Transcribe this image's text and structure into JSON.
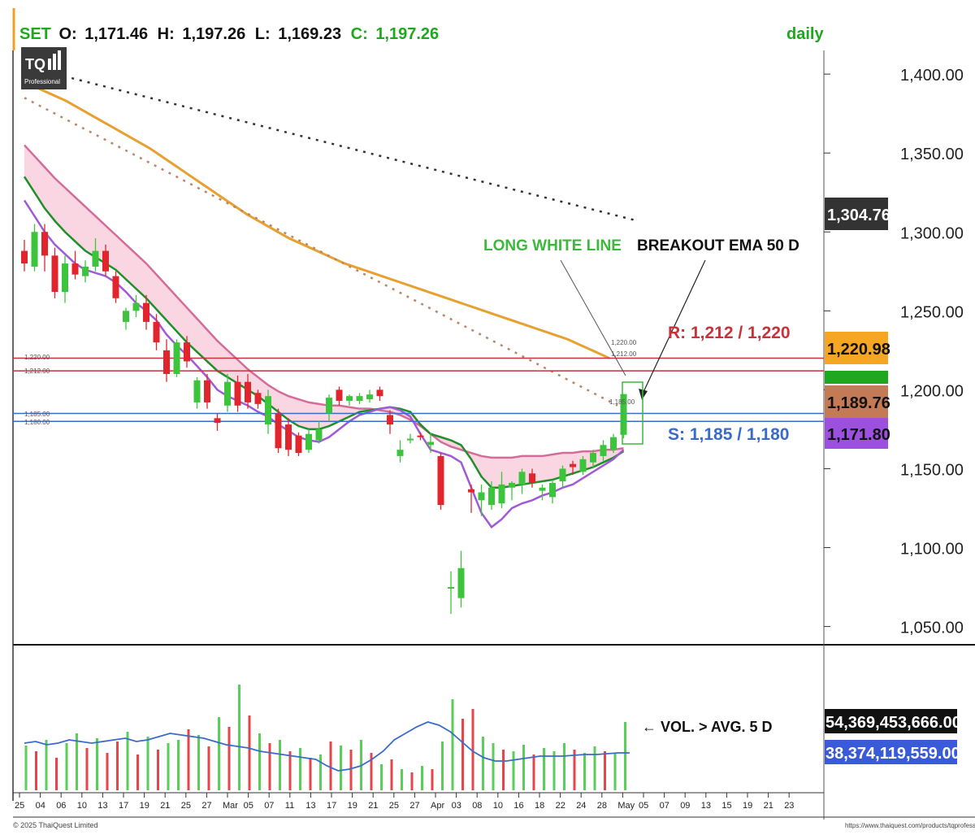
{
  "header": {
    "symbol": "SET",
    "o_label": "O:",
    "open": "1,171.46",
    "h_label": "H:",
    "high": "1,197.26",
    "l_label": "L:",
    "low": "1,169.23",
    "c_label": "C:",
    "close": "1,197.26",
    "period": "daily"
  },
  "logo": {
    "main": "TQ",
    "sub": "Professional"
  },
  "annotations": {
    "long_white_line": "LONG WHITE LINE",
    "breakout": "BREAKOUT EMA 50 D",
    "resistance": "R: 1,212 / 1,220",
    "support": "S: 1,185 / 1,180",
    "volume_note": "← VOL. > AVG. 5 D"
  },
  "level_labels": {
    "r1": "1,220.00",
    "r2": "1,212.00",
    "s1": "1,185.00",
    "s2": "1,180.00",
    "near_r1": "1,220.00",
    "near_r2": "1,212.00",
    "near_s": "1,185.00"
  },
  "price_tags": [
    {
      "value": "1,304.76",
      "color": "#333333",
      "text_color": "#ffffff"
    },
    {
      "value": "1,220.98",
      "color": "#f5a623",
      "text_color": "#111111"
    },
    {
      "value": "",
      "color": "#1fa81f",
      "text_color": "#ffffff"
    },
    {
      "value": "1,189.76",
      "color": "#c47a55",
      "text_color": "#111111"
    },
    {
      "value": "1,171.80",
      "color": "#9b50e0",
      "text_color": "#111111"
    }
  ],
  "volume_tags": [
    {
      "value": "54,369,453,666.00",
      "color": "#111111",
      "text_color": "#ffffff"
    },
    {
      "value": "38,374,119,559.00",
      "color": "#3a5bd9",
      "text_color": "#ffffff"
    }
  ],
  "footer": {
    "copyright": "© 2025 ThaiQuest Limited",
    "url": "https://www.thaiquest.com/products/tqprofessional/"
  },
  "colors": {
    "up": "#3cc53c",
    "down": "#e0262c",
    "ema_fast": "#a05ad8",
    "ema_green": "#1f8f2a",
    "ema_pink": "#d46c9a",
    "band_fill": "#f8cfdc",
    "ema_orange": "#e8a030",
    "dotted_brown": "#b8866a",
    "dotted_black": "#333333",
    "resistance": "#c8323c",
    "support": "#3a6bc8",
    "vol_avg": "#3a6bc8"
  },
  "chart_data": {
    "type": "candlestick",
    "title": "SET daily",
    "ylim": [
      1040,
      1415
    ],
    "y_ticks": [
      "1,400.00",
      "1,350.00",
      "1,300.00",
      "1,250.00",
      "1,200.00",
      "1,150.00",
      "1,100.00",
      "1,050.00"
    ],
    "y_tick_values": [
      1400,
      1350,
      1300,
      1250,
      1200,
      1150,
      1100,
      1050
    ],
    "x_labels": [
      "25",
      "04",
      "06",
      "10",
      "13",
      "17",
      "19",
      "21",
      "25",
      "27",
      "Mar",
      "05",
      "07",
      "11",
      "13",
      "17",
      "19",
      "21",
      "25",
      "27",
      "Apr",
      "03",
      "08",
      "10",
      "16",
      "18",
      "22",
      "24",
      "28",
      "May",
      "05",
      "07",
      "09",
      "13",
      "15",
      "19",
      "21",
      "23"
    ],
    "candles": [
      {
        "o": 1288,
        "h": 1295,
        "l": 1275,
        "c": 1280
      },
      {
        "o": 1278,
        "h": 1305,
        "l": 1275,
        "c": 1300
      },
      {
        "o": 1300,
        "h": 1305,
        "l": 1275,
        "c": 1285
      },
      {
        "o": 1285,
        "h": 1290,
        "l": 1258,
        "c": 1262
      },
      {
        "o": 1262,
        "h": 1285,
        "l": 1255,
        "c": 1280
      },
      {
        "o": 1280,
        "h": 1288,
        "l": 1270,
        "c": 1273
      },
      {
        "o": 1272,
        "h": 1282,
        "l": 1268,
        "c": 1278
      },
      {
        "o": 1278,
        "h": 1296,
        "l": 1275,
        "c": 1288
      },
      {
        "o": 1288,
        "h": 1292,
        "l": 1272,
        "c": 1275
      },
      {
        "o": 1272,
        "h": 1275,
        "l": 1255,
        "c": 1258
      },
      {
        "o": 1243,
        "h": 1252,
        "l": 1238,
        "c": 1250
      },
      {
        "o": 1250,
        "h": 1260,
        "l": 1246,
        "c": 1255
      },
      {
        "o": 1255,
        "h": 1260,
        "l": 1238,
        "c": 1243
      },
      {
        "o": 1243,
        "h": 1248,
        "l": 1225,
        "c": 1230
      },
      {
        "o": 1225,
        "h": 1232,
        "l": 1205,
        "c": 1210
      },
      {
        "o": 1210,
        "h": 1232,
        "l": 1208,
        "c": 1230
      },
      {
        "o": 1230,
        "h": 1234,
        "l": 1214,
        "c": 1218
      },
      {
        "o": 1192,
        "h": 1208,
        "l": 1188,
        "c": 1206
      },
      {
        "o": 1206,
        "h": 1210,
        "l": 1188,
        "c": 1192
      },
      {
        "o": 1182,
        "h": 1185,
        "l": 1174,
        "c": 1179
      },
      {
        "o": 1190,
        "h": 1210,
        "l": 1186,
        "c": 1205
      },
      {
        "o": 1205,
        "h": 1209,
        "l": 1186,
        "c": 1190
      },
      {
        "o": 1205,
        "h": 1210,
        "l": 1188,
        "c": 1192
      },
      {
        "o": 1198,
        "h": 1200,
        "l": 1188,
        "c": 1191
      },
      {
        "o": 1178,
        "h": 1200,
        "l": 1172,
        "c": 1196
      },
      {
        "o": 1185,
        "h": 1188,
        "l": 1160,
        "c": 1163
      },
      {
        "o": 1178,
        "h": 1182,
        "l": 1158,
        "c": 1162
      },
      {
        "o": 1171,
        "h": 1173,
        "l": 1158,
        "c": 1160
      },
      {
        "o": 1162,
        "h": 1175,
        "l": 1160,
        "c": 1172
      },
      {
        "o": 1168,
        "h": 1180,
        "l": 1166,
        "c": 1175
      },
      {
        "o": 1185,
        "h": 1197,
        "l": 1180,
        "c": 1195
      },
      {
        "o": 1200,
        "h": 1202,
        "l": 1190,
        "c": 1193
      },
      {
        "o": 1193,
        "h": 1197,
        "l": 1190,
        "c": 1196
      },
      {
        "o": 1193,
        "h": 1198,
        "l": 1191,
        "c": 1196
      },
      {
        "o": 1194,
        "h": 1200,
        "l": 1192,
        "c": 1197
      },
      {
        "o": 1200,
        "h": 1202,
        "l": 1193,
        "c": 1196
      },
      {
        "o": 1184,
        "h": 1187,
        "l": 1172,
        "c": 1178
      },
      {
        "o": 1158,
        "h": 1168,
        "l": 1154,
        "c": 1162
      },
      {
        "o": 1168,
        "h": 1172,
        "l": 1166,
        "c": 1169
      },
      {
        "o": 1171,
        "h": 1173,
        "l": 1168,
        "c": 1170
      },
      {
        "o": 1165,
        "h": 1173,
        "l": 1160,
        "c": 1167
      },
      {
        "o": 1158,
        "h": 1160,
        "l": 1124,
        "c": 1127
      },
      {
        "o": 1075,
        "h": 1085,
        "l": 1058,
        "c": 1075
      },
      {
        "o": 1068,
        "h": 1098,
        "l": 1062,
        "c": 1087
      },
      {
        "o": 1137,
        "h": 1140,
        "l": 1122,
        "c": 1135
      },
      {
        "o": 1130,
        "h": 1140,
        "l": 1120,
        "c": 1135
      },
      {
        "o": 1127,
        "h": 1142,
        "l": 1124,
        "c": 1138
      },
      {
        "o": 1128,
        "h": 1148,
        "l": 1125,
        "c": 1140
      },
      {
        "o": 1138,
        "h": 1142,
        "l": 1130,
        "c": 1141
      },
      {
        "o": 1140,
        "h": 1150,
        "l": 1134,
        "c": 1148
      },
      {
        "o": 1147,
        "h": 1150,
        "l": 1138,
        "c": 1141
      },
      {
        "o": 1136,
        "h": 1140,
        "l": 1130,
        "c": 1138
      },
      {
        "o": 1132,
        "h": 1143,
        "l": 1128,
        "c": 1141
      },
      {
        "o": 1142,
        "h": 1152,
        "l": 1138,
        "c": 1150
      },
      {
        "o": 1153,
        "h": 1155,
        "l": 1146,
        "c": 1151
      },
      {
        "o": 1148,
        "h": 1158,
        "l": 1146,
        "c": 1156
      },
      {
        "o": 1154,
        "h": 1162,
        "l": 1150,
        "c": 1160
      },
      {
        "o": 1158,
        "h": 1168,
        "l": 1155,
        "c": 1165
      },
      {
        "o": 1162,
        "h": 1172,
        "l": 1160,
        "c": 1170
      },
      {
        "o": 1171.46,
        "h": 1197.26,
        "l": 1169.23,
        "c": 1197.26
      }
    ],
    "ema_fast": [
      1320,
      1310,
      1300,
      1292,
      1286,
      1280,
      1276,
      1274,
      1272,
      1268,
      1262,
      1255,
      1250,
      1244,
      1235,
      1228,
      1222,
      1215,
      1208,
      1200,
      1196,
      1193,
      1190,
      1186,
      1183,
      1178,
      1174,
      1170,
      1168,
      1167,
      1170,
      1175,
      1180,
      1184,
      1186,
      1188,
      1189,
      1187,
      1183,
      1172,
      1162,
      1160,
      1158,
      1154,
      1138,
      1122,
      1113,
      1118,
      1125,
      1128,
      1130,
      1133,
      1135,
      1138,
      1140,
      1144,
      1148,
      1152,
      1156,
      1162
    ],
    "ema_green": [
      1335,
      1325,
      1315,
      1307,
      1300,
      1294,
      1288,
      1284,
      1280,
      1276,
      1270,
      1264,
      1258,
      1251,
      1244,
      1237,
      1230,
      1224,
      1218,
      1212,
      1208,
      1204,
      1200,
      1196,
      1191,
      1186,
      1181,
      1177,
      1175,
      1175,
      1177,
      1180,
      1183,
      1186,
      1187,
      1188,
      1189,
      1188,
      1186,
      1178,
      1172,
      1170,
      1168,
      1165,
      1156,
      1145,
      1138,
      1138,
      1139,
      1140,
      1141,
      1142,
      1143,
      1145,
      1147,
      1149,
      1151,
      1154,
      1157,
      1161
    ],
    "ema_pink": [
      1355,
      1348,
      1341,
      1334,
      1328,
      1322,
      1316,
      1310,
      1304,
      1298,
      1292,
      1286,
      1280,
      1273,
      1266,
      1259,
      1252,
      1245,
      1238,
      1231,
      1225,
      1219,
      1213,
      1208,
      1203,
      1199,
      1196,
      1194,
      1192,
      1191,
      1190,
      1190,
      1189,
      1188,
      1188,
      1187,
      1186,
      1184,
      1181,
      1177,
      1172,
      1167,
      1164,
      1162,
      1160,
      1158,
      1157,
      1157,
      1157,
      1158,
      1158,
      1158,
      1159,
      1160,
      1160,
      1161,
      1161,
      1162,
      1162,
      1163
    ],
    "ema_orange": [
      1395,
      1391,
      1387,
      1383,
      1378,
      1373,
      1368,
      1363,
      1358,
      1353,
      1347,
      1341,
      1335,
      1329,
      1323,
      1317,
      1311,
      1306,
      1301,
      1296,
      1292,
      1288,
      1284,
      1280,
      1277,
      1274,
      1271,
      1268,
      1265,
      1262,
      1259,
      1256,
      1253,
      1250,
      1247,
      1244,
      1241,
      1238,
      1235,
      1232,
      1228,
      1224,
      1220
    ],
    "dotted_brown": [
      1385,
      1190
    ],
    "dotted_black": [
      1405,
      1307
    ],
    "resistance": [
      1220,
      1212
    ],
    "support": [
      1185,
      1180
    ],
    "volume": [
      {
        "v": 55,
        "up": true
      },
      {
        "v": 48,
        "up": false
      },
      {
        "v": 62,
        "up": true
      },
      {
        "v": 40,
        "up": false
      },
      {
        "v": 58,
        "up": true
      },
      {
        "v": 70,
        "up": true
      },
      {
        "v": 52,
        "up": false
      },
      {
        "v": 64,
        "up": true
      },
      {
        "v": 46,
        "up": false
      },
      {
        "v": 60,
        "up": false
      },
      {
        "v": 72,
        "up": true
      },
      {
        "v": 44,
        "up": false
      },
      {
        "v": 66,
        "up": true
      },
      {
        "v": 50,
        "up": false
      },
      {
        "v": 58,
        "up": true
      },
      {
        "v": 62,
        "up": true
      },
      {
        "v": 75,
        "up": false
      },
      {
        "v": 68,
        "up": true
      },
      {
        "v": 54,
        "up": false
      },
      {
        "v": 90,
        "up": true
      },
      {
        "v": 78,
        "up": false
      },
      {
        "v": 130,
        "up": true
      },
      {
        "v": 92,
        "up": false
      },
      {
        "v": 70,
        "up": true
      },
      {
        "v": 58,
        "up": false
      },
      {
        "v": 62,
        "up": true
      },
      {
        "v": 48,
        "up": false
      },
      {
        "v": 52,
        "up": true
      },
      {
        "v": 40,
        "up": false
      },
      {
        "v": 44,
        "up": true
      },
      {
        "v": 60,
        "up": false
      },
      {
        "v": 55,
        "up": true
      },
      {
        "v": 50,
        "up": false
      },
      {
        "v": 62,
        "up": true
      },
      {
        "v": 46,
        "up": false
      },
      {
        "v": 32,
        "up": true
      },
      {
        "v": 38,
        "up": false
      },
      {
        "v": 26,
        "up": true
      },
      {
        "v": 22,
        "up": false
      },
      {
        "v": 30,
        "up": true
      },
      {
        "v": 26,
        "up": false
      },
      {
        "v": 60,
        "up": true
      },
      {
        "v": 112,
        "up": true
      },
      {
        "v": 88,
        "up": false
      },
      {
        "v": 100,
        "up": false
      },
      {
        "v": 66,
        "up": true
      },
      {
        "v": 58,
        "up": true
      },
      {
        "v": 50,
        "up": false
      },
      {
        "v": 48,
        "up": true
      },
      {
        "v": 56,
        "up": true
      },
      {
        "v": 44,
        "up": false
      },
      {
        "v": 52,
        "up": true
      },
      {
        "v": 48,
        "up": true
      },
      {
        "v": 58,
        "up": true
      },
      {
        "v": 50,
        "up": false
      },
      {
        "v": 46,
        "up": true
      },
      {
        "v": 54,
        "up": true
      },
      {
        "v": 48,
        "up": false
      },
      {
        "v": 46,
        "up": true
      },
      {
        "v": 84,
        "up": true
      }
    ],
    "volume_avg": [
      58,
      60,
      56,
      58,
      62,
      60,
      58,
      60,
      62,
      64,
      60,
      62,
      66,
      70,
      68,
      66,
      64,
      60,
      56,
      54,
      52,
      48,
      46,
      44,
      42,
      40,
      38,
      30,
      24,
      26,
      30,
      38,
      48,
      62,
      70,
      78,
      84,
      80,
      72,
      60,
      48,
      40,
      36,
      36,
      38,
      40,
      42,
      42,
      42,
      43,
      44,
      44,
      45,
      46,
      46
    ]
  }
}
